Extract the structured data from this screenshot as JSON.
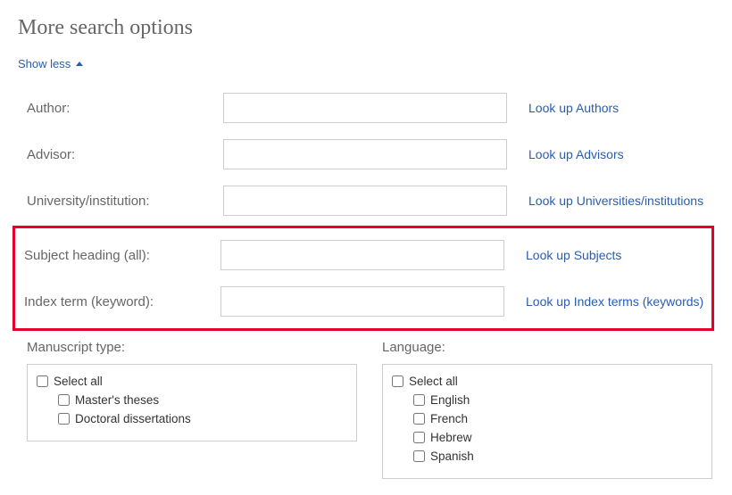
{
  "title": "More search options",
  "toggle": {
    "label": "Show less"
  },
  "fields": {
    "author": {
      "label": "Author:",
      "lookup": "Look up Authors"
    },
    "advisor": {
      "label": "Advisor:",
      "lookup": "Look up Advisors"
    },
    "university": {
      "label": "University/institution:",
      "lookup": "Look up Universities/institutions"
    },
    "subject": {
      "label": "Subject heading (all):",
      "lookup": "Look up Subjects"
    },
    "indexterm": {
      "label": "Index term (keyword):",
      "lookup": "Look up Index terms (keywords)"
    }
  },
  "manuscript": {
    "heading": "Manuscript type:",
    "select_all": "Select all",
    "options": {
      "masters": "Master's theses",
      "doctoral": "Doctoral dissertations"
    }
  },
  "language": {
    "heading": "Language:",
    "select_all": "Select all",
    "options": {
      "english": "English",
      "french": "French",
      "hebrew": "Hebrew",
      "spanish": "Spanish"
    }
  },
  "colors": {
    "link": "#2a5db0",
    "highlight": "#e4002b",
    "muted": "#666666",
    "border": "#cccccc"
  }
}
